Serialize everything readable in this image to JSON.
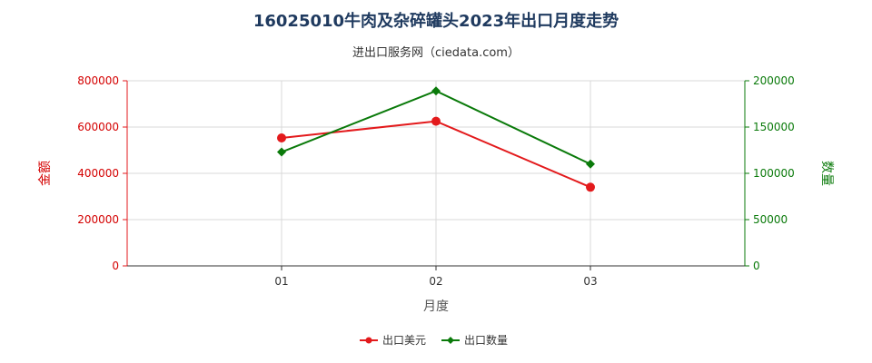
{
  "chart_data": {
    "type": "line",
    "title": "16025010牛肉及杂碎罐头2023年出口月度走势",
    "subtitle": "进出口服务网（ciedata.com）",
    "xlabel": "月度",
    "categories": [
      "01",
      "02",
      "03"
    ],
    "y_left": {
      "label": "金额",
      "lim": [
        0,
        800000
      ],
      "ticks": [
        "0",
        "200000",
        "400000",
        "600000",
        "800000"
      ],
      "tick_values": [
        0,
        200000,
        400000,
        600000,
        800000
      ],
      "color": "#e31a1c"
    },
    "y_right": {
      "label": "数量",
      "lim": [
        0,
        200000
      ],
      "ticks": [
        "0",
        "50000",
        "100000",
        "150000",
        "200000"
      ],
      "tick_values": [
        0,
        50000,
        100000,
        150000,
        200000
      ],
      "color": "#0a7a0a"
    },
    "series": [
      {
        "name": "出口美元",
        "axis": "left",
        "color": "#e31a1c",
        "marker": "circle",
        "values": [
          553000,
          625000,
          340000
        ]
      },
      {
        "name": "出口数量",
        "axis": "right",
        "color": "#0a7a0a",
        "marker": "diamond",
        "values": [
          123000,
          189000,
          110000
        ]
      }
    ],
    "grid": true,
    "legend_position": "bottom-center"
  }
}
